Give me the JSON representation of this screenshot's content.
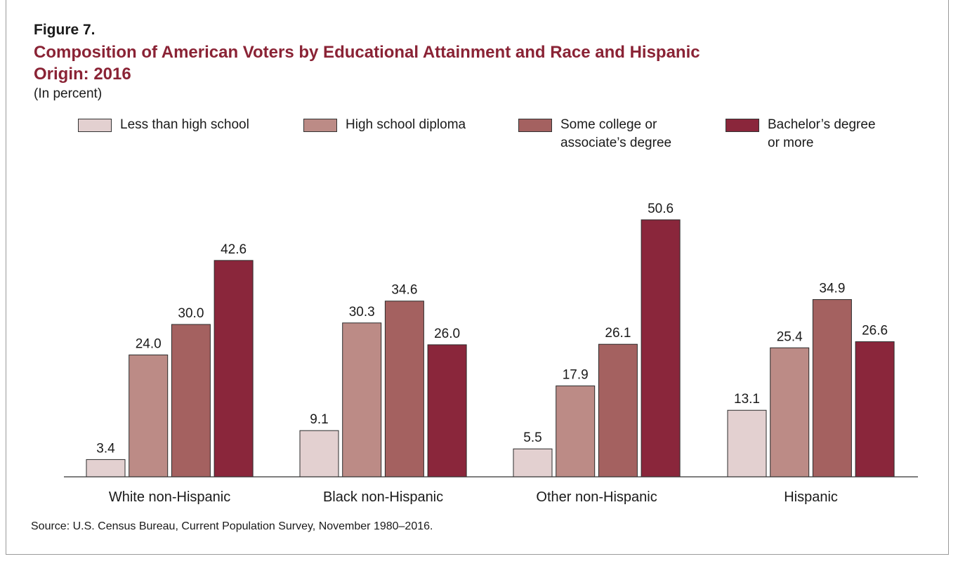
{
  "figure_label": "Figure 7.",
  "title": "Composition of American Voters by Educational Attainment and Race and Hispanic Origin: 2016",
  "subtitle": "(In percent)",
  "source": "Source: U.S. Census Bureau, Current Population Survey, November 1980–2016.",
  "colors": {
    "title": "#8a2335",
    "series": [
      "#e3d0d0",
      "#bc8b86",
      "#a46160",
      "#8a263b"
    ]
  },
  "legend": [
    {
      "label": "Less than high school"
    },
    {
      "label": "High school diploma"
    },
    {
      "label": "Some college or\nassociate’s degree"
    },
    {
      "label": "Bachelor’s degree\nor more"
    }
  ],
  "chart_data": {
    "type": "bar",
    "title": "Composition of American Voters by Educational Attainment and Race and Hispanic Origin: 2016",
    "subtitle": "(In percent)",
    "categories": [
      "White non-Hispanic",
      "Black non-Hispanic",
      "Other non-Hispanic",
      "Hispanic"
    ],
    "series": [
      {
        "name": "Less than high school",
        "values": [
          3.4,
          9.1,
          5.5,
          13.1
        ],
        "labels": [
          "3.4",
          "9.1",
          "5.5",
          "13.1"
        ]
      },
      {
        "name": "High school diploma",
        "values": [
          24.0,
          30.3,
          17.9,
          25.4
        ],
        "labels": [
          "24.0",
          "30.3",
          "17.9",
          "25.4"
        ]
      },
      {
        "name": "Some college or associate’s degree",
        "values": [
          30.0,
          34.6,
          26.1,
          34.9
        ],
        "labels": [
          "30.0",
          "34.6",
          "26.1",
          "34.9"
        ]
      },
      {
        "name": "Bachelor’s degree or more",
        "values": [
          42.6,
          26.0,
          50.6,
          26.6
        ],
        "labels": [
          "42.6",
          "26.0",
          "50.6",
          "26.6"
        ]
      }
    ],
    "ylim": [
      0,
      50.6
    ],
    "grid": false,
    "legend_position": "top"
  }
}
